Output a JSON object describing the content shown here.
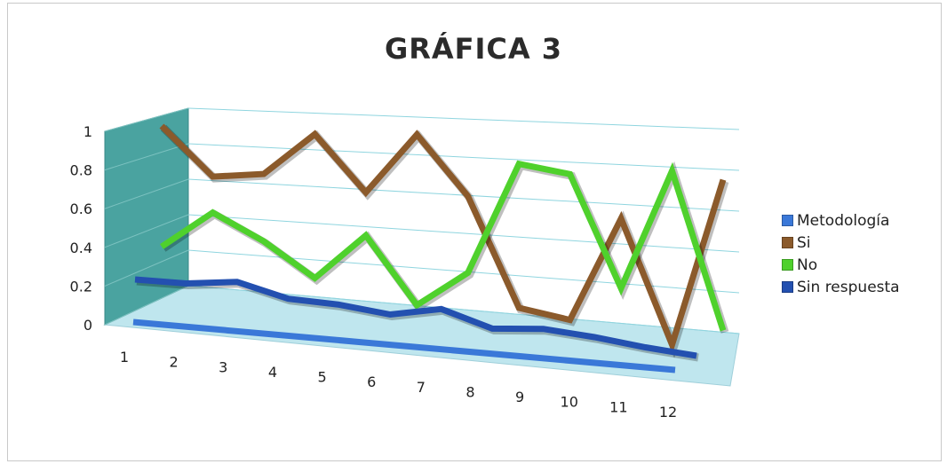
{
  "chart_data": {
    "type": "line",
    "title": "GRÁFICA 3",
    "xlabel": "",
    "ylabel": "",
    "categories": [
      "1",
      "2",
      "3",
      "4",
      "5",
      "6",
      "7",
      "8",
      "9",
      "10",
      "11",
      "12"
    ],
    "yticks": [
      "0",
      "0.2",
      "0.4",
      "0.6",
      "0.8",
      "1"
    ],
    "ylim": [
      0,
      1
    ],
    "grid": true,
    "legend_position": "right",
    "series": [
      {
        "name": "Metodología",
        "color": "#3a78d8",
        "values": [
          0,
          0,
          0,
          0,
          0,
          0,
          0,
          0,
          0,
          0,
          0,
          0
        ]
      },
      {
        "name": "Si",
        "color": "#8b5a2b",
        "values": [
          0.93,
          0.66,
          0.69,
          0.92,
          0.62,
          0.94,
          0.63,
          0.07,
          0.03,
          0.56,
          -0.05,
          0.78
        ]
      },
      {
        "name": "No",
        "color": "#4fd12c",
        "values": [
          0.26,
          0.47,
          0.33,
          0.15,
          0.4,
          0.05,
          0.24,
          0.82,
          0.78,
          0.22,
          0.82,
          0.05
        ]
      },
      {
        "name": "Sin respuesta",
        "color": "#2350b0",
        "values": [
          0.16,
          0.16,
          0.19,
          0.12,
          0.11,
          0.08,
          0.13,
          0.05,
          0.07,
          0.05,
          0.02,
          0.0
        ]
      }
    ]
  }
}
